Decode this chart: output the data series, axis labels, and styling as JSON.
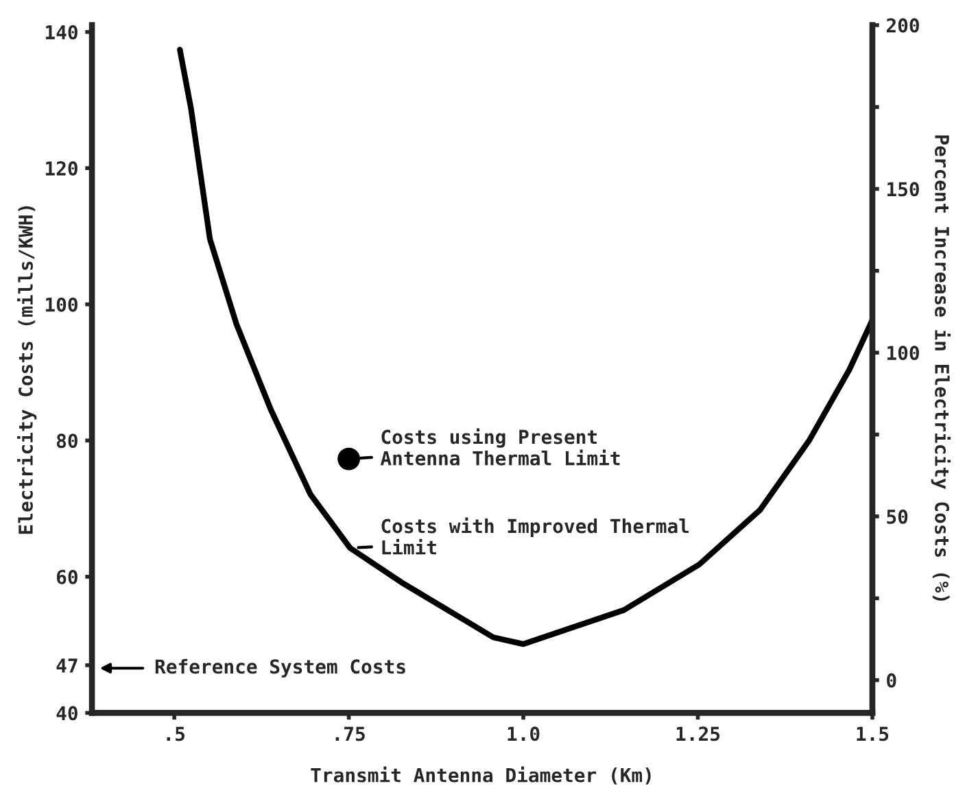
{
  "chart_data": {
    "type": "line",
    "xlabel": "Transmit Antenna Diameter (Km)",
    "ylabel": "Electricity Costs (mills/KWH)",
    "y2label": "Percent Increase in Electricity Costs (%)",
    "series": [
      {
        "color": "#000000",
        "x": [
          0.508,
          0.524,
          0.551,
          0.589,
          0.638,
          0.695,
          0.752,
          0.825,
          0.957,
          1.0,
          1.144,
          1.252,
          1.339,
          1.41,
          1.467,
          1.5
        ],
        "values": [
          137.4,
          128.7,
          109.6,
          97.1,
          84.6,
          72.1,
          64.2,
          59.2,
          51.1,
          50.1,
          55.1,
          61.8,
          69.8,
          80.1,
          90.4,
          97.7
        ]
      },
      {
        "type": "scatter",
        "marker": "circle",
        "color": "#000000",
        "x": [
          0.75
        ],
        "values": [
          77.3
        ]
      }
    ],
    "xlim": [
      0.382,
      1.5
    ],
    "xticks": [
      {
        "value": 0.5,
        "label": ".5"
      },
      {
        "value": 0.75,
        "label": ".75"
      },
      {
        "value": 1.0,
        "label": "1.0"
      },
      {
        "value": 1.25,
        "label": "1.25"
      },
      {
        "value": 1.5,
        "label": "1.5"
      }
    ],
    "ylim": [
      40,
      141
    ],
    "yticks": [
      40,
      47,
      60,
      80,
      100,
      120,
      140
    ],
    "y2lim": [
      -10,
      200
    ],
    "y2ticks": [
      0,
      {
        "value": 25,
        "label": null
      },
      50,
      {
        "value": 75,
        "label": null
      },
      100,
      {
        "value": 125,
        "label": null
      },
      150,
      {
        "value": 175,
        "label": null
      },
      200
    ],
    "grid": false,
    "line_style": "solid",
    "annotations": [
      {
        "text": "Costs using Present\nAntenna Thermal Limit",
        "x": 0.75,
        "y": 77.3
      },
      {
        "text": "Costs with Improved Thermal\nLimit",
        "x": 0.75,
        "y": 64.2
      },
      "Reference System Costs"
    ]
  }
}
